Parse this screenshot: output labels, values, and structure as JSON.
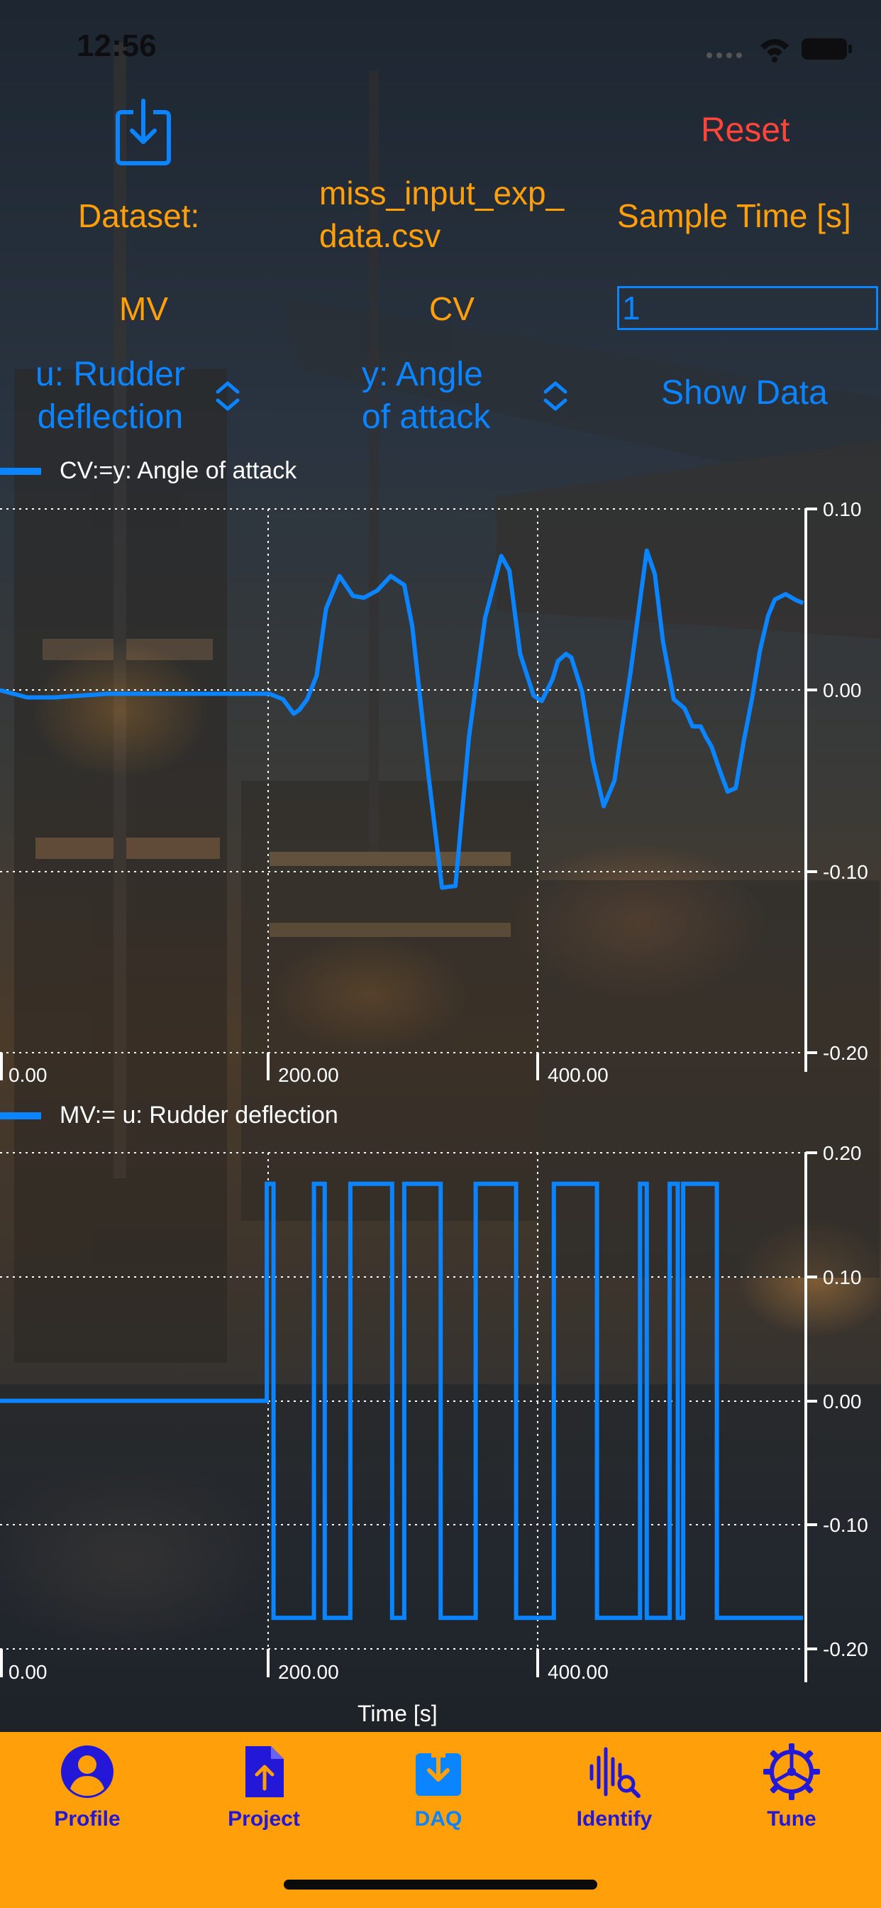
{
  "status_bar": {
    "time": "12:56"
  },
  "header": {
    "reset_label": "Reset",
    "dataset_label": "Dataset:",
    "dataset_file": "miss_input_exp_\ndata.csv",
    "sample_time_label": "Sample Time [s]",
    "mv_label": "MV",
    "cv_label": "CV",
    "sample_time_value": "1",
    "mv_selection": "u: Rudder\ndeflection",
    "cv_selection": "y: Angle\nof attack",
    "show_data_label": "Show Data"
  },
  "colors": {
    "accent": "#0A84FF",
    "orange": "#FF9F0A",
    "reset": "#FF453A",
    "tab_label": "#2318d8"
  },
  "charts": [
    {
      "legend": "CV:=y: Angle of attack",
      "y_ticks": [
        "0.10",
        "0.00",
        "-0.10",
        "-0.20"
      ],
      "x_ticks": [
        "0.00",
        "200.00",
        "400.00"
      ]
    },
    {
      "legend": "MV:= u: Rudder deflection",
      "y_ticks": [
        "0.20",
        "0.10",
        "0.00",
        "-0.10",
        "-0.20"
      ],
      "x_ticks": [
        "0.00",
        "200.00",
        "400.00"
      ]
    }
  ],
  "chart_data": [
    {
      "type": "line",
      "series": [
        {
          "name": "CV:=y: Angle of attack",
          "x": [
            0,
            10,
            20,
            40,
            80,
            120,
            160,
            180,
            200,
            210,
            218,
            222,
            228,
            235,
            242,
            252,
            262,
            270,
            280,
            290,
            300,
            306,
            318,
            328,
            338,
            348,
            360,
            372,
            378,
            386,
            396,
            402,
            410,
            414,
            420,
            424,
            432,
            440,
            448,
            456,
            460,
            468,
            476,
            480,
            486,
            492,
            500,
            508,
            514,
            520,
            524,
            528,
            534,
            540,
            546,
            552,
            558,
            564,
            570,
            575,
            583,
            590,
            596
          ],
          "y": [
            0.0,
            -0.002,
            -0.004,
            -0.004,
            -0.002,
            -0.002,
            -0.002,
            -0.002,
            -0.002,
            -0.005,
            -0.013,
            -0.011,
            -0.005,
            0.008,
            0.045,
            0.063,
            0.052,
            0.051,
            0.055,
            0.063,
            0.058,
            0.035,
            -0.047,
            -0.109,
            -0.108,
            -0.026,
            0.04,
            0.074,
            0.066,
            0.02,
            -0.003,
            -0.006,
            0.006,
            0.016,
            0.02,
            0.018,
            -0.001,
            -0.039,
            -0.064,
            -0.05,
            -0.029,
            0.01,
            0.055,
            0.077,
            0.064,
            0.027,
            -0.005,
            -0.01,
            -0.02,
            -0.02,
            -0.026,
            -0.031,
            -0.044,
            -0.056,
            -0.054,
            -0.028,
            -0.005,
            0.022,
            0.041,
            0.05,
            0.053,
            0.05,
            0.048
          ],
          "color": "#0A84FF"
        }
      ],
      "xlabel": "",
      "ylabel": "",
      "xlim": [
        0,
        598
      ],
      "ylim": [
        -0.2,
        0.1
      ],
      "grid": true
    },
    {
      "type": "line",
      "series": [
        {
          "name": "MV:= u: Rudder deflection",
          "x": [
            0,
            198,
            198,
            203,
            203,
            233,
            233,
            241,
            241,
            260,
            260,
            291,
            291,
            300,
            300,
            327,
            327,
            353,
            353,
            383,
            383,
            411,
            411,
            443,
            443,
            475,
            475,
            480,
            480,
            497,
            497,
            503,
            503,
            507,
            507,
            532,
            532,
            596
          ],
          "y": [
            0,
            0,
            0.175,
            0.175,
            -0.175,
            -0.175,
            0.175,
            0.175,
            -0.175,
            -0.175,
            0.175,
            0.175,
            -0.175,
            -0.175,
            0.175,
            0.175,
            -0.175,
            -0.175,
            0.175,
            0.175,
            -0.175,
            -0.175,
            0.175,
            0.175,
            -0.175,
            -0.175,
            0.175,
            0.175,
            -0.175,
            -0.175,
            0.175,
            0.175,
            -0.175,
            -0.175,
            0.175,
            0.175,
            -0.175,
            -0.175
          ],
          "color": "#0A84FF"
        }
      ],
      "xlabel": "Time [s]",
      "ylabel": "",
      "xlim": [
        0,
        598
      ],
      "ylim": [
        -0.2,
        0.2
      ],
      "grid": true
    }
  ],
  "tabs": [
    {
      "label": "Profile",
      "icon": "person-circle-icon",
      "active": false
    },
    {
      "label": "Project",
      "icon": "doc-upload-icon",
      "active": false
    },
    {
      "label": "DAQ",
      "icon": "tray-download-icon",
      "active": true
    },
    {
      "label": "Identify",
      "icon": "waveform-search-icon",
      "active": false
    },
    {
      "label": "Tune",
      "icon": "steering-gear-icon",
      "active": false
    }
  ]
}
